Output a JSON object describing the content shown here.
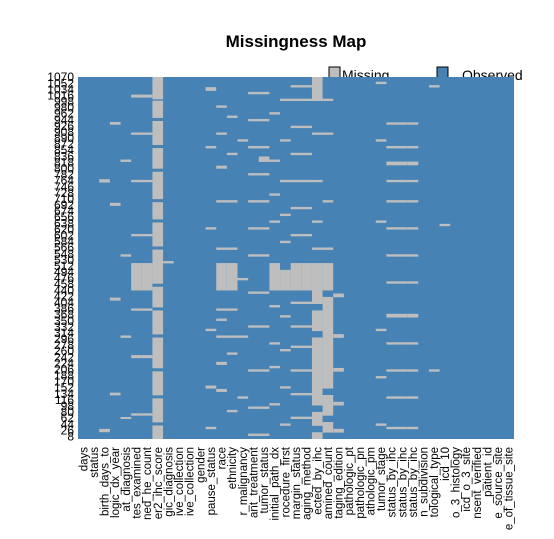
{
  "chart_data": {
    "type": "heatmap",
    "title": "Missingness Map",
    "legend": {
      "placement": "top-right",
      "entries": [
        {
          "label": "Missing",
          "color": "#bebebe"
        },
        {
          "label": "Observed",
          "color": "#4682b4"
        }
      ]
    },
    "colors": {
      "missing": "#bebebe",
      "observed": "#4682b4",
      "background": "#ffffff"
    },
    "n_rows": 1070,
    "y_tick_labels": [
      "1070",
      "1052",
      "1034",
      "1016",
      "998",
      "980",
      "962",
      "944",
      "926",
      "908",
      "890",
      "872",
      "854",
      "836",
      "818",
      "800",
      "782",
      "764",
      "746",
      "728",
      "710",
      "692",
      "674",
      "656",
      "638",
      "620",
      "602",
      "584",
      "566",
      "548",
      "530",
      "512",
      "494",
      "476",
      "458",
      "440",
      "422",
      "404",
      "386",
      "368",
      "350",
      "332",
      "314",
      "296",
      "278",
      "260",
      "242",
      "224",
      "206",
      "188",
      "170",
      "152",
      "134",
      "116",
      "98",
      "80",
      "62",
      "44",
      "26",
      "8"
    ],
    "x_tick_labels": [
      "days",
      "status",
      "birth_days_to",
      "logic_dx_year",
      "at_diagnosis",
      "tes_examined",
      "ned_he_count",
      "er2_ihc_score",
      "gic_diagnosis",
      "ive_collection",
      "ive_collection",
      "gender",
      "pause_status",
      "race",
      "ethnicity",
      "r_malignancy",
      "ant_treatment",
      "tumor_status",
      "initial_path_dx",
      "rocedure_first",
      "margin_status",
      "aging_method",
      "ected_by_ihc",
      "amined_count",
      "taging_edition",
      "pathologic_pt",
      "pathologic_pn",
      "athologic_pm",
      "tumor_stage",
      "status_by_ihc",
      "status_by_ihc",
      "status_by_ihc",
      "n_subdivision",
      "tological_type",
      "icd_10",
      "o_3_histology",
      "icd_o_3_site",
      "nsent_verified",
      "_patient_id",
      "e_source_site",
      "e_of_tissue_site"
    ],
    "missing_segments": [
      {
        "column": "birth_days_to",
        "row_ranges": [
          [
            21,
            30
          ],
          [
            759,
            768
          ]
        ]
      },
      {
        "column": "logic_dx_year",
        "row_ranges": [
          [
            130,
            137
          ],
          [
            410,
            418
          ],
          [
            690,
            698
          ],
          [
            930,
            937
          ]
        ]
      },
      {
        "column": "at_diagnosis",
        "row_ranges": [
          [
            60,
            65
          ],
          [
            300,
            306
          ],
          [
            540,
            546
          ],
          [
            820,
            826
          ]
        ]
      },
      {
        "column": "tes_examined",
        "row_ranges": [
          [
            70,
            76
          ],
          [
            240,
            248
          ],
          [
            380,
            386
          ],
          [
            440,
            520
          ],
          [
            600,
            606
          ],
          [
            760,
            766
          ],
          [
            900,
            906
          ],
          [
            1010,
            1018
          ]
        ]
      },
      {
        "column": "ned_he_count",
        "row_ranges": [
          [
            70,
            76
          ],
          [
            240,
            248
          ],
          [
            380,
            386
          ],
          [
            440,
            520
          ],
          [
            600,
            606
          ],
          [
            760,
            766
          ],
          [
            900,
            906
          ],
          [
            1010,
            1018
          ]
        ]
      },
      {
        "column": "er2_ihc_score",
        "row_ranges": [
          [
            1,
            40
          ],
          [
            50,
            120
          ],
          [
            130,
            200
          ],
          [
            210,
            300
          ],
          [
            310,
            380
          ],
          [
            390,
            450
          ],
          [
            460,
            560
          ],
          [
            570,
            640
          ],
          [
            650,
            700
          ],
          [
            710,
            790
          ],
          [
            800,
            860
          ],
          [
            870,
            940
          ],
          [
            950,
            1000
          ],
          [
            1005,
            1070
          ]
        ]
      },
      {
        "column": "gic_diagnosis",
        "row_ranges": [
          [
            520,
            526
          ]
        ]
      },
      {
        "column": "pause_status",
        "row_ranges": [
          [
            30,
            36
          ],
          [
            150,
            158
          ],
          [
            320,
            326
          ],
          [
            620,
            626
          ],
          [
            860,
            866
          ],
          [
            1030,
            1040
          ]
        ]
      },
      {
        "column": "race",
        "row_ranges": [
          [
            140,
            148
          ],
          [
            220,
            228
          ],
          [
            300,
            306
          ],
          [
            350,
            356
          ],
          [
            380,
            386
          ],
          [
            440,
            520
          ],
          [
            560,
            566
          ],
          [
            700,
            706
          ],
          [
            800,
            808
          ],
          [
            900,
            906
          ],
          [
            980,
            986
          ]
        ]
      },
      {
        "column": "ethnicity",
        "row_ranges": [
          [
            80,
            86
          ],
          [
            250,
            256
          ],
          [
            300,
            306
          ],
          [
            380,
            386
          ],
          [
            440,
            520
          ],
          [
            560,
            566
          ],
          [
            700,
            706
          ],
          [
            840,
            846
          ],
          [
            950,
            956
          ]
        ]
      },
      {
        "column": "r_malignancy",
        "row_ranges": [
          [
            120,
            126
          ],
          [
            300,
            306
          ],
          [
            470,
            476
          ],
          [
            880,
            886
          ]
        ]
      },
      {
        "column": "ant_treatment",
        "row_ranges": [
          [
            10,
            16
          ],
          [
            90,
            96
          ],
          [
            200,
            206
          ],
          [
            330,
            336
          ],
          [
            430,
            436
          ],
          [
            540,
            546
          ],
          [
            620,
            626
          ],
          [
            700,
            706
          ],
          [
            780,
            786
          ],
          [
            860,
            866
          ],
          [
            940,
            946
          ],
          [
            1020,
            1026
          ]
        ]
      },
      {
        "column": "tumor_status",
        "row_ranges": [
          [
            10,
            16
          ],
          [
            90,
            96
          ],
          [
            200,
            206
          ],
          [
            330,
            336
          ],
          [
            430,
            436
          ],
          [
            540,
            546
          ],
          [
            620,
            626
          ],
          [
            700,
            706
          ],
          [
            780,
            786
          ],
          [
            820,
            835
          ],
          [
            860,
            866
          ],
          [
            940,
            946
          ],
          [
            1020,
            1026
          ]
        ]
      },
      {
        "column": "initial_path_dx",
        "row_ranges": [
          [
            100,
            106
          ],
          [
            210,
            216
          ],
          [
            280,
            286
          ],
          [
            390,
            396
          ],
          [
            440,
            520
          ],
          [
            640,
            646
          ],
          [
            720,
            726
          ],
          [
            820,
            826
          ],
          [
            960,
            966
          ]
        ]
      },
      {
        "column": "rocedure_first",
        "row_ranges": [
          [
            40,
            46
          ],
          [
            150,
            156
          ],
          [
            260,
            266
          ],
          [
            360,
            366
          ],
          [
            440,
            500
          ],
          [
            580,
            586
          ],
          [
            660,
            666
          ],
          [
            760,
            766
          ],
          [
            880,
            886
          ],
          [
            1000,
            1006
          ]
        ]
      },
      {
        "column": "margin_status",
        "row_ranges": [
          [
            60,
            66
          ],
          [
            130,
            136
          ],
          [
            200,
            206
          ],
          [
            270,
            276
          ],
          [
            330,
            336
          ],
          [
            400,
            406
          ],
          [
            440,
            520
          ],
          [
            600,
            606
          ],
          [
            680,
            686
          ],
          [
            760,
            766
          ],
          [
            840,
            846
          ],
          [
            920,
            926
          ],
          [
            1000,
            1006
          ],
          [
            1040,
            1046
          ]
        ]
      },
      {
        "column": "aging_method",
        "row_ranges": [
          [
            60,
            66
          ],
          [
            130,
            136
          ],
          [
            200,
            206
          ],
          [
            270,
            276
          ],
          [
            330,
            336
          ],
          [
            400,
            406
          ],
          [
            440,
            520
          ],
          [
            600,
            606
          ],
          [
            680,
            686
          ],
          [
            760,
            766
          ],
          [
            840,
            846
          ],
          [
            920,
            926
          ],
          [
            1000,
            1006
          ],
          [
            1040,
            1046
          ]
        ]
      },
      {
        "column": "ected_by_ihc",
        "row_ranges": [
          [
            1,
            20
          ],
          [
            40,
            80
          ],
          [
            100,
            300
          ],
          [
            320,
            380
          ],
          [
            400,
            520
          ],
          [
            560,
            566
          ],
          [
            640,
            646
          ],
          [
            760,
            766
          ],
          [
            900,
            906
          ],
          [
            1000,
            1070
          ]
        ]
      },
      {
        "column": "amined_count",
        "row_ranges": [
          [
            20,
            50
          ],
          [
            70,
            130
          ],
          [
            150,
            420
          ],
          [
            440,
            520
          ],
          [
            560,
            566
          ],
          [
            700,
            706
          ],
          [
            900,
            906
          ],
          [
            1000,
            1006
          ]
        ]
      },
      {
        "column": "taging_edition",
        "row_ranges": [
          [
            20,
            30
          ],
          [
            100,
            110
          ],
          [
            200,
            210
          ],
          [
            300,
            310
          ],
          [
            420,
            430
          ]
        ]
      },
      {
        "column": "pathologic_pm",
        "row_ranges": [
          [
            110,
            116
          ],
          [
            330,
            336
          ],
          [
            500,
            506
          ],
          [
            780,
            786
          ],
          [
            980,
            986
          ]
        ]
      },
      {
        "column": "tumor_stage",
        "row_ranges": [
          [
            40,
            46
          ],
          [
            180,
            186
          ],
          [
            320,
            326
          ],
          [
            640,
            646
          ],
          [
            880,
            886
          ],
          [
            1050,
            1056
          ]
        ]
      },
      {
        "column": "status_by_ihc",
        "row_ranges": [
          [
            30,
            36
          ],
          [
            120,
            126
          ],
          [
            200,
            206
          ],
          [
            280,
            286
          ],
          [
            360,
            370
          ],
          [
            460,
            466
          ],
          [
            540,
            546
          ],
          [
            620,
            626
          ],
          [
            700,
            706
          ],
          [
            760,
            766
          ],
          [
            810,
            820
          ],
          [
            860,
            866
          ],
          [
            930,
            936
          ]
        ]
      },
      {
        "column": "status_by_ihc",
        "row_ranges": [
          [
            30,
            36
          ],
          [
            120,
            126
          ],
          [
            200,
            206
          ],
          [
            280,
            286
          ],
          [
            360,
            370
          ],
          [
            460,
            466
          ],
          [
            540,
            546
          ],
          [
            620,
            626
          ],
          [
            700,
            706
          ],
          [
            760,
            766
          ],
          [
            810,
            820
          ],
          [
            860,
            866
          ],
          [
            930,
            936
          ]
        ]
      },
      {
        "column": "status_by_ihc",
        "row_ranges": [
          [
            30,
            36
          ],
          [
            120,
            126
          ],
          [
            200,
            206
          ],
          [
            280,
            286
          ],
          [
            360,
            370
          ],
          [
            460,
            466
          ],
          [
            540,
            546
          ],
          [
            620,
            626
          ],
          [
            700,
            706
          ],
          [
            760,
            766
          ],
          [
            810,
            820
          ],
          [
            860,
            866
          ],
          [
            930,
            936
          ]
        ]
      },
      {
        "column": "tological_type",
        "row_ranges": [
          [
            200,
            206
          ],
          [
            1040,
            1046
          ]
        ]
      },
      {
        "column": "icd_10",
        "row_ranges": [
          [
            630,
            636
          ]
        ]
      }
    ]
  }
}
